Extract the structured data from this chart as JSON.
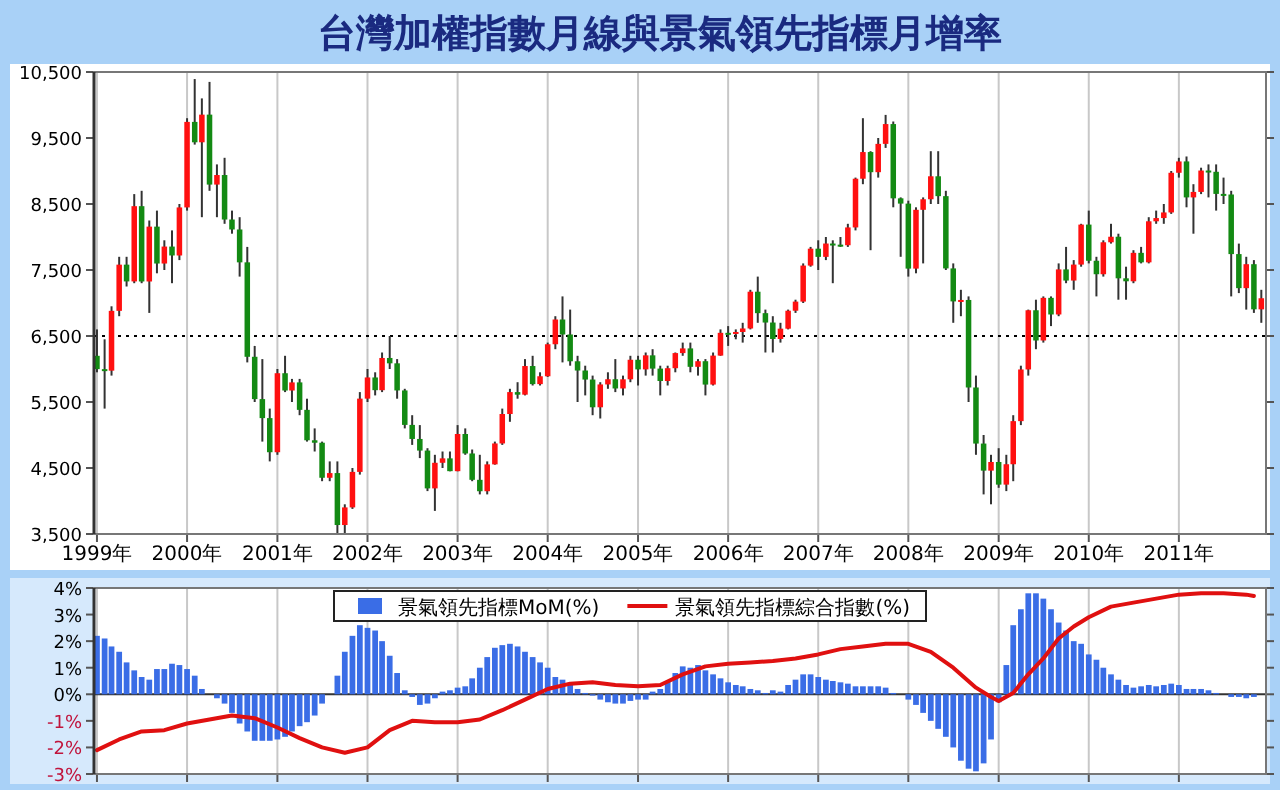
{
  "chart_data": [
    {
      "type": "candlestick",
      "title": "台灣加權指數月線與景氣領先指標月增率",
      "x": [
        "1999-01",
        "1999-02",
        "1999-03",
        "1999-04",
        "1999-05",
        "1999-06",
        "1999-07",
        "1999-08",
        "1999-09",
        "1999-10",
        "1999-11",
        "1999-12",
        "2000-01",
        "2000-02",
        "2000-03",
        "2000-04",
        "2000-05",
        "2000-06",
        "2000-07",
        "2000-08",
        "2000-09",
        "2000-10",
        "2000-11",
        "2000-12",
        "2001-01",
        "2001-02",
        "2001-03",
        "2001-04",
        "2001-05",
        "2001-06",
        "2001-07",
        "2001-08",
        "2001-09",
        "2001-10",
        "2001-11",
        "2001-12",
        "2002-01",
        "2002-02",
        "2002-03",
        "2002-04",
        "2002-05",
        "2002-06",
        "2002-07",
        "2002-08",
        "2002-09",
        "2002-10",
        "2002-11",
        "2002-12",
        "2003-01",
        "2003-02",
        "2003-03",
        "2003-04",
        "2003-05",
        "2003-06",
        "2003-07",
        "2003-08",
        "2003-09",
        "2003-10",
        "2003-11",
        "2003-12",
        "2004-01",
        "2004-02",
        "2004-03",
        "2004-04",
        "2004-05",
        "2004-06",
        "2004-07",
        "2004-08",
        "2004-09",
        "2004-10",
        "2004-11",
        "2004-12",
        "2005-01",
        "2005-02",
        "2005-03",
        "2005-04",
        "2005-05",
        "2005-06",
        "2005-07",
        "2005-08",
        "2005-09",
        "2005-10",
        "2005-11",
        "2005-12",
        "2006-01",
        "2006-02",
        "2006-03",
        "2006-04",
        "2006-05",
        "2006-06",
        "2006-07",
        "2006-08",
        "2006-09",
        "2006-10",
        "2006-11",
        "2006-12",
        "2007-01",
        "2007-02",
        "2007-03",
        "2007-04",
        "2007-05",
        "2007-06",
        "2007-07",
        "2007-08",
        "2007-09",
        "2007-10",
        "2007-11",
        "2007-12",
        "2008-01",
        "2008-02",
        "2008-03",
        "2008-04",
        "2008-05",
        "2008-06",
        "2008-07",
        "2008-08",
        "2008-09",
        "2008-10",
        "2008-11",
        "2008-12",
        "2009-01",
        "2009-02",
        "2009-03",
        "2009-04",
        "2009-05",
        "2009-06",
        "2009-07",
        "2009-08",
        "2009-09",
        "2009-10",
        "2009-11",
        "2009-12",
        "2010-01",
        "2010-02",
        "2010-03",
        "2010-04",
        "2010-05",
        "2010-06",
        "2010-07",
        "2010-08",
        "2010-09",
        "2010-10",
        "2010-11",
        "2010-12",
        "2011-01",
        "2011-02",
        "2011-03",
        "2011-04",
        "2011-05",
        "2011-06",
        "2011-07",
        "2011-08",
        "2011-09",
        "2011-10",
        "2011-11",
        "2011-12"
      ],
      "ohlc": [
        [
          6200,
          6600,
          5950,
          5998
        ],
        [
          5998,
          6450,
          5400,
          5975
        ],
        [
          5975,
          6950,
          5900,
          6881
        ],
        [
          6881,
          7700,
          6800,
          7581
        ],
        [
          7581,
          7700,
          7250,
          7327
        ],
        [
          7327,
          8650,
          7300,
          8467
        ],
        [
          8467,
          8700,
          7300,
          7326
        ],
        [
          7326,
          8250,
          6850,
          8157
        ],
        [
          8157,
          8400,
          7450,
          7598
        ],
        [
          7598,
          7950,
          7500,
          7855
        ],
        [
          7855,
          8100,
          7300,
          7720
        ],
        [
          7720,
          8500,
          7650,
          8448
        ],
        [
          8448,
          9800,
          8400,
          9744
        ],
        [
          9744,
          10393,
          9400,
          9435
        ],
        [
          9435,
          10100,
          8300,
          9854
        ],
        [
          9854,
          10350,
          8700,
          8794
        ],
        [
          8794,
          9100,
          8300,
          8939
        ],
        [
          8939,
          9200,
          8200,
          8265
        ],
        [
          8265,
          8400,
          8050,
          8114
        ],
        [
          8114,
          8300,
          7400,
          7616
        ],
        [
          7616,
          7850,
          6100,
          6185
        ],
        [
          6185,
          6350,
          5500,
          5544
        ],
        [
          5544,
          6150,
          4900,
          5256
        ],
        [
          5256,
          5400,
          4600,
          4739
        ],
        [
          4739,
          6000,
          4700,
          5936
        ],
        [
          5936,
          6200,
          5650,
          5674
        ],
        [
          5674,
          5850,
          5500,
          5797
        ],
        [
          5797,
          5850,
          5300,
          5381
        ],
        [
          5381,
          5550,
          4900,
          4920
        ],
        [
          4920,
          5100,
          4750,
          4883
        ],
        [
          4883,
          4900,
          4300,
          4352
        ],
        [
          4352,
          4600,
          4300,
          4423
        ],
        [
          4423,
          4600,
          3500,
          3636
        ],
        [
          3636,
          3950,
          3500,
          3903
        ],
        [
          3903,
          4500,
          3880,
          4441
        ],
        [
          4441,
          5650,
          4400,
          5551
        ],
        [
          5551,
          6000,
          5500,
          5872
        ],
        [
          5872,
          5950,
          5600,
          5679
        ],
        [
          5679,
          6250,
          5650,
          6167
        ],
        [
          6167,
          6500,
          6000,
          6086
        ],
        [
          6086,
          6150,
          5550,
          5675
        ],
        [
          5675,
          5700,
          5100,
          5153
        ],
        [
          5153,
          5300,
          4850,
          4940
        ],
        [
          4940,
          5150,
          4650,
          4764
        ],
        [
          4764,
          4800,
          4150,
          4191
        ],
        [
          4191,
          4700,
          3850,
          4579
        ],
        [
          4579,
          4750,
          4500,
          4646
        ],
        [
          4646,
          4750,
          4450,
          4452
        ],
        [
          4452,
          5150,
          4450,
          5015
        ],
        [
          5015,
          5100,
          4700,
          4720
        ],
        [
          4720,
          4780,
          4300,
          4321
        ],
        [
          4321,
          4700,
          4100,
          4148
        ],
        [
          4148,
          4600,
          4100,
          4555
        ],
        [
          4555,
          4900,
          4550,
          4872
        ],
        [
          4872,
          5400,
          4850,
          5318
        ],
        [
          5318,
          5700,
          5200,
          5650
        ],
        [
          5650,
          5800,
          5550,
          5611
        ],
        [
          5611,
          6150,
          5600,
          6045
        ],
        [
          6045,
          6200,
          5750,
          5771
        ],
        [
          5771,
          5950,
          5750,
          5890
        ],
        [
          5890,
          6400,
          5880,
          6375
        ],
        [
          6375,
          6800,
          6300,
          6750
        ],
        [
          6750,
          7100,
          6100,
          6523
        ],
        [
          6523,
          6900,
          6050,
          6117
        ],
        [
          6117,
          6200,
          5500,
          5977
        ],
        [
          5977,
          6050,
          5600,
          5840
        ],
        [
          5840,
          5900,
          5300,
          5420
        ],
        [
          5420,
          5800,
          5250,
          5766
        ],
        [
          5766,
          5950,
          5700,
          5845
        ],
        [
          5845,
          6150,
          5650,
          5705
        ],
        [
          5705,
          5900,
          5600,
          5844
        ],
        [
          5844,
          6200,
          5800,
          6140
        ],
        [
          6140,
          6200,
          5750,
          5994
        ],
        [
          5994,
          6250,
          5900,
          6207
        ],
        [
          6207,
          6300,
          5900,
          6006
        ],
        [
          6006,
          6050,
          5600,
          5818
        ],
        [
          5818,
          6050,
          5750,
          6012
        ],
        [
          6012,
          6250,
          5950,
          6241
        ],
        [
          6241,
          6400,
          6200,
          6312
        ],
        [
          6312,
          6400,
          5950,
          6033
        ],
        [
          6033,
          6150,
          5900,
          6118
        ],
        [
          6118,
          6150,
          5600,
          5764
        ],
        [
          5764,
          6250,
          5750,
          6203
        ],
        [
          6203,
          6600,
          6200,
          6548
        ],
        [
          6548,
          6650,
          6350,
          6532
        ],
        [
          6532,
          6600,
          6450,
          6561
        ],
        [
          6561,
          6700,
          6400,
          6614
        ],
        [
          6614,
          7200,
          6600,
          7171
        ],
        [
          7171,
          7400,
          6700,
          6846
        ],
        [
          6846,
          6900,
          6250,
          6704
        ],
        [
          6704,
          6800,
          6250,
          6455
        ],
        [
          6455,
          6700,
          6400,
          6611
        ],
        [
          6611,
          6900,
          6600,
          6883
        ],
        [
          6883,
          7050,
          6850,
          7021
        ],
        [
          7021,
          7600,
          7000,
          7567
        ],
        [
          7567,
          7850,
          7550,
          7823
        ],
        [
          7823,
          7950,
          7500,
          7699
        ],
        [
          7699,
          8000,
          7650,
          7901
        ],
        [
          7901,
          7950,
          7300,
          7884
        ],
        [
          7884,
          8000,
          7850,
          7875
        ],
        [
          7875,
          8200,
          7850,
          8145
        ],
        [
          8145,
          8900,
          8100,
          8883
        ],
        [
          8883,
          9800,
          8800,
          9287
        ],
        [
          9287,
          9300,
          7800,
          8982
        ],
        [
          8982,
          9500,
          8900,
          9411
        ],
        [
          9411,
          9850,
          9350,
          9711
        ],
        [
          9711,
          9750,
          8450,
          8586
        ],
        [
          8586,
          8600,
          7700,
          8506
        ],
        [
          8506,
          8550,
          7400,
          7521
        ],
        [
          7521,
          8450,
          7450,
          8412
        ],
        [
          8412,
          8600,
          7600,
          8572
        ],
        [
          8572,
          9300,
          8500,
          8920
        ],
        [
          8920,
          9300,
          8500,
          8619
        ],
        [
          8619,
          8700,
          7500,
          7524
        ],
        [
          7524,
          7600,
          6700,
          7024
        ],
        [
          7024,
          7200,
          6800,
          7046
        ],
        [
          7046,
          7100,
          5500,
          5720
        ],
        [
          5720,
          5900,
          4700,
          4870
        ],
        [
          4870,
          5000,
          4100,
          4460
        ],
        [
          4460,
          4700,
          3950,
          4591
        ],
        [
          4591,
          4800,
          4200,
          4248
        ],
        [
          4248,
          4700,
          4150,
          4557
        ],
        [
          4557,
          5300,
          4300,
          5210
        ],
        [
          5210,
          6050,
          5150,
          5993
        ],
        [
          5993,
          6900,
          5900,
          6890
        ],
        [
          6890,
          7050,
          6300,
          6432
        ],
        [
          6432,
          7100,
          6400,
          7078
        ],
        [
          7078,
          7100,
          6650,
          6826
        ],
        [
          6826,
          7600,
          6800,
          7509
        ],
        [
          7509,
          7850,
          7300,
          7340
        ],
        [
          7340,
          7650,
          7200,
          7582
        ],
        [
          7582,
          8200,
          7550,
          8188
        ],
        [
          8188,
          8400,
          7600,
          7640
        ],
        [
          7640,
          7700,
          7100,
          7436
        ],
        [
          7436,
          7950,
          7400,
          7920
        ],
        [
          7920,
          8200,
          7900,
          8004
        ],
        [
          8004,
          8050,
          7050,
          7374
        ],
        [
          7374,
          7550,
          7050,
          7329
        ],
        [
          7329,
          7800,
          7300,
          7760
        ],
        [
          7760,
          7850,
          7600,
          7616
        ],
        [
          7616,
          8300,
          7600,
          8238
        ],
        [
          8238,
          8400,
          8200,
          8287
        ],
        [
          8287,
          8500,
          8200,
          8372
        ],
        [
          8372,
          9000,
          8350,
          8973
        ],
        [
          8973,
          9200,
          8900,
          9145
        ],
        [
          9145,
          9220,
          8450,
          8600
        ],
        [
          8600,
          8800,
          8050,
          8683
        ],
        [
          8683,
          9050,
          8650,
          9007
        ],
        [
          9007,
          9100,
          8600,
          8988
        ],
        [
          8988,
          9100,
          8400,
          8653
        ],
        [
          8653,
          8900,
          8500,
          8644
        ],
        [
          8644,
          8700,
          7100,
          7741
        ],
        [
          7741,
          7900,
          7150,
          7225
        ],
        [
          7225,
          7700,
          6900,
          7588
        ],
        [
          7588,
          7650,
          6850,
          6904
        ],
        [
          6904,
          7200,
          6700,
          7072
        ]
      ],
      "xlim": [
        "1998-12-20",
        "2011-12-20"
      ],
      "xticks": [
        {
          "value": "1999-01",
          "label": "1999年"
        },
        {
          "value": "2000-01",
          "label": "2000年"
        },
        {
          "value": "2001-01",
          "label": "2001年"
        },
        {
          "value": "2002-01",
          "label": "2002年"
        },
        {
          "value": "2003-01",
          "label": "2003年"
        },
        {
          "value": "2004-01",
          "label": "2004年"
        },
        {
          "value": "2005-01",
          "label": "2005年"
        },
        {
          "value": "2006-01",
          "label": "2006年"
        },
        {
          "value": "2007-01",
          "label": "2007年"
        },
        {
          "value": "2008-01",
          "label": "2008年"
        },
        {
          "value": "2009-01",
          "label": "2009年"
        },
        {
          "value": "2010-01",
          "label": "2010年"
        },
        {
          "value": "2011-01",
          "label": "2011年"
        }
      ],
      "ylim": [
        3500,
        10500
      ],
      "yticks": [
        {
          "value": 3500,
          "label": "3,500"
        },
        {
          "value": 4500,
          "label": "4,500"
        },
        {
          "value": 5500,
          "label": "5,500"
        },
        {
          "value": 6500,
          "label": "6,500"
        },
        {
          "value": 7500,
          "label": "7,500"
        },
        {
          "value": 8500,
          "label": "8,500"
        },
        {
          "value": 9500,
          "label": "9,500"
        },
        {
          "value": 10500,
          "label": "10,500"
        }
      ],
      "ref_lines": [
        {
          "axis": "y",
          "value": 6500,
          "color": "#000000",
          "line_style": "dotted"
        }
      ],
      "grid": "x"
    },
    {
      "type": "bar",
      "x": [
        "1999-01",
        "1999-02",
        "1999-03",
        "1999-04",
        "1999-05",
        "1999-06",
        "1999-07",
        "1999-08",
        "1999-09",
        "1999-10",
        "1999-11",
        "1999-12",
        "2000-01",
        "2000-02",
        "2000-03",
        "2000-04",
        "2000-05",
        "2000-06",
        "2000-07",
        "2000-08",
        "2000-09",
        "2000-10",
        "2000-11",
        "2000-12",
        "2001-01",
        "2001-02",
        "2001-03",
        "2001-04",
        "2001-05",
        "2001-06",
        "2001-07",
        "2001-08",
        "2001-09",
        "2001-10",
        "2001-11",
        "2001-12",
        "2002-01",
        "2002-02",
        "2002-03",
        "2002-04",
        "2002-05",
        "2002-06",
        "2002-07",
        "2002-08",
        "2002-09",
        "2002-10",
        "2002-11",
        "2002-12",
        "2003-01",
        "2003-02",
        "2003-03",
        "2003-04",
        "2003-05",
        "2003-06",
        "2003-07",
        "2003-08",
        "2003-09",
        "2003-10",
        "2003-11",
        "2003-12",
        "2004-01",
        "2004-02",
        "2004-03",
        "2004-04",
        "2004-05",
        "2004-06",
        "2004-07",
        "2004-08",
        "2004-09",
        "2004-10",
        "2004-11",
        "2004-12",
        "2005-01",
        "2005-02",
        "2005-03",
        "2005-04",
        "2005-05",
        "2005-06",
        "2005-07",
        "2005-08",
        "2005-09",
        "2005-10",
        "2005-11",
        "2005-12",
        "2006-01",
        "2006-02",
        "2006-03",
        "2006-04",
        "2006-05",
        "2006-06",
        "2006-07",
        "2006-08",
        "2006-09",
        "2006-10",
        "2006-11",
        "2006-12",
        "2007-01",
        "2007-02",
        "2007-03",
        "2007-04",
        "2007-05",
        "2007-06",
        "2007-07",
        "2007-08",
        "2007-09",
        "2007-10",
        "2007-11",
        "2007-12",
        "2008-01",
        "2008-02",
        "2008-03",
        "2008-04",
        "2008-05",
        "2008-06",
        "2008-07",
        "2008-08",
        "2008-09",
        "2008-10",
        "2008-11",
        "2008-12",
        "2009-01",
        "2009-02",
        "2009-03",
        "2009-04",
        "2009-05",
        "2009-06",
        "2009-07",
        "2009-08",
        "2009-09",
        "2009-10",
        "2009-11",
        "2009-12",
        "2010-01",
        "2010-02",
        "2010-03",
        "2010-04",
        "2010-05",
        "2010-06",
        "2010-07",
        "2010-08",
        "2010-09",
        "2010-10",
        "2010-11",
        "2010-12",
        "2011-01",
        "2011-02",
        "2011-03",
        "2011-04",
        "2011-05",
        "2011-06",
        "2011-07",
        "2011-08",
        "2011-09",
        "2011-10",
        "2011-11"
      ],
      "series": [
        {
          "name": "景氣領先指標MoM(%)",
          "color": "#3a6de6",
          "values": [
            2.2,
            2.1,
            1.8,
            1.6,
            1.2,
            0.9,
            0.65,
            0.55,
            0.95,
            0.95,
            1.15,
            1.1,
            0.95,
            0.7,
            0.2,
            0,
            -0.15,
            -0.35,
            -0.7,
            -1.1,
            -1.4,
            -1.75,
            -1.75,
            -1.75,
            -1.7,
            -1.6,
            -1.4,
            -1.2,
            -1.05,
            -0.8,
            -0.35,
            0,
            0.7,
            1.6,
            2.2,
            2.6,
            2.5,
            2.4,
            2.0,
            1.45,
            0.8,
            0.15,
            -0.1,
            -0.4,
            -0.35,
            -0.15,
            0.1,
            0.15,
            0.25,
            0.3,
            0.6,
            1.0,
            1.4,
            1.75,
            1.85,
            1.9,
            1.8,
            1.6,
            1.4,
            1.2,
            1.0,
            0.65,
            0.55,
            0.35,
            0.2,
            0.05,
            -0.05,
            -0.2,
            -0.3,
            -0.35,
            -0.35,
            -0.25,
            -0.2,
            -0.2,
            0.1,
            0.2,
            0.5,
            0.8,
            1.05,
            1.0,
            1.1,
            0.9,
            0.75,
            0.6,
            0.45,
            0.35,
            0.3,
            0.2,
            0.15,
            0.05,
            0.15,
            0.1,
            0.35,
            0.55,
            0.75,
            0.75,
            0.65,
            0.55,
            0.5,
            0.45,
            0.4,
            0.3,
            0.3,
            0.3,
            0.3,
            0.25,
            0.05,
            0,
            -0.2,
            -0.4,
            -0.7,
            -1.0,
            -1.3,
            -1.6,
            -2.0,
            -2.5,
            -2.8,
            -2.9,
            -2.6,
            -1.7,
            -0.3,
            1.1,
            2.6,
            3.2,
            3.8,
            3.8,
            3.6,
            3.2,
            2.7,
            2.4,
            2.0,
            1.9,
            1.5,
            1.3,
            1.0,
            0.75,
            0.55,
            0.35,
            0.25,
            0.3,
            0.35,
            0.3,
            0.35,
            0.4,
            0.35,
            0.2,
            0.2,
            0.2,
            0.15,
            0.05,
            0,
            -0.1,
            -0.1,
            -0.15,
            -0.1
          ]
        },
        {
          "name": "景氣領先指標綜合指數(%)",
          "type": "line",
          "color": "#e01010",
          "x": [
            "1999-01",
            "1999-04",
            "1999-07",
            "1999-10",
            "2000-01",
            "2000-04",
            "2000-07",
            "2000-10",
            "2001-01",
            "2001-04",
            "2001-07",
            "2001-10",
            "2002-01",
            "2002-04",
            "2002-07",
            "2002-10",
            "2003-01",
            "2003-04",
            "2003-07",
            "2003-10",
            "2004-01",
            "2004-04",
            "2004-07",
            "2004-10",
            "2005-01",
            "2005-04",
            "2005-07",
            "2005-10",
            "2006-01",
            "2006-04",
            "2006-07",
            "2006-10",
            "2007-01",
            "2007-04",
            "2007-07",
            "2007-10",
            "2008-01",
            "2008-04",
            "2008-07",
            "2008-10",
            "2008-12",
            "2009-01",
            "2009-03",
            "2009-05",
            "2009-07",
            "2009-09",
            "2009-11",
            "2010-01",
            "2010-04",
            "2010-07",
            "2010-10",
            "2011-01",
            "2011-04",
            "2011-07",
            "2011-10",
            "2011-11"
          ],
          "values": [
            -2.1,
            -1.7,
            -1.4,
            -1.35,
            -1.1,
            -0.95,
            -0.8,
            -0.9,
            -1.25,
            -1.65,
            -2.0,
            -2.2,
            -2.0,
            -1.35,
            -1.0,
            -1.05,
            -1.05,
            -0.95,
            -0.6,
            -0.2,
            0.2,
            0.4,
            0.45,
            0.35,
            0.3,
            0.35,
            0.75,
            1.05,
            1.15,
            1.2,
            1.25,
            1.35,
            1.5,
            1.7,
            1.8,
            1.9,
            1.9,
            1.6,
            1.0,
            0.25,
            -0.1,
            -0.25,
            0.05,
            0.75,
            1.35,
            2.1,
            2.55,
            2.9,
            3.3,
            3.45,
            3.6,
            3.75,
            3.8,
            3.8,
            3.75,
            3.7
          ]
        }
      ],
      "xlim": [
        "1998-12-20",
        "2011-12-20"
      ],
      "xticks": [
        {
          "value": "1999-01",
          "label": null
        },
        {
          "value": "2000-01",
          "label": null
        },
        {
          "value": "2001-01",
          "label": null
        },
        {
          "value": "2002-01",
          "label": null
        },
        {
          "value": "2003-01",
          "label": null
        },
        {
          "value": "2004-01",
          "label": null
        },
        {
          "value": "2005-01",
          "label": null
        },
        {
          "value": "2006-01",
          "label": null
        },
        {
          "value": "2007-01",
          "label": null
        },
        {
          "value": "2008-01",
          "label": null
        },
        {
          "value": "2009-01",
          "label": null
        },
        {
          "value": "2010-01",
          "label": null
        },
        {
          "value": "2011-01",
          "label": null
        }
      ],
      "ylim": [
        -3,
        4
      ],
      "yticks": [
        {
          "value": -3,
          "label": "-3%"
        },
        {
          "value": -2,
          "label": "-2%"
        },
        {
          "value": -1,
          "label": "-1%"
        },
        {
          "value": 0,
          "label": "0%"
        },
        {
          "value": 1,
          "label": "1%"
        },
        {
          "value": 2,
          "label": "2%"
        },
        {
          "value": 3,
          "label": "3%"
        },
        {
          "value": 4,
          "label": "4%"
        }
      ],
      "grid": "x",
      "legend": "top",
      "tick_labels": "y"
    }
  ]
}
